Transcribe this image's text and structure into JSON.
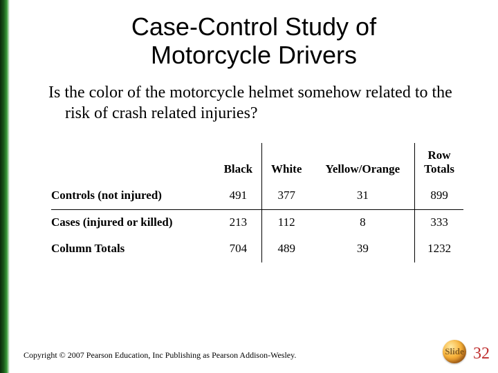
{
  "title_line1": "Case-Control Study of",
  "title_line2": "Motorcycle Drivers",
  "question": "Is the color of the motorcycle helmet somehow related to the risk of crash related injuries?",
  "table": {
    "col_headers": {
      "black": "Black",
      "white": "White",
      "yellow_orange": "Yellow/Orange",
      "row_totals_l1": "Row",
      "row_totals_l2": "Totals"
    },
    "rows": [
      {
        "label": "Controls (not injured)",
        "black": "491",
        "white": "377",
        "yo": "31",
        "total": "899"
      },
      {
        "label": "Cases (injured or killed)",
        "black": "213",
        "white": "112",
        "yo": "8",
        "total": "333"
      },
      {
        "label": "Column Totals",
        "black": "704",
        "white": "489",
        "yo": "39",
        "total": "1232"
      }
    ]
  },
  "copyright": "Copyright © 2007 Pearson Education, Inc Publishing as Pearson Addison-Wesley.",
  "slide_label": "Slide",
  "slide_number": "32"
}
